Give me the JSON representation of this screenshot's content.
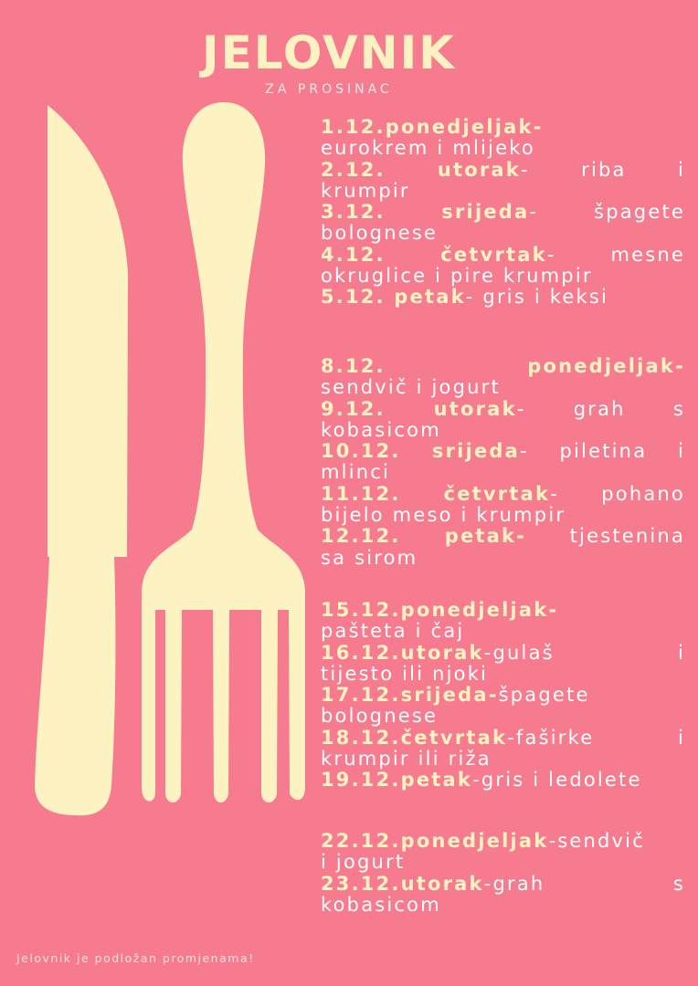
{
  "title": "JELOVNIK",
  "subtitle": "ZA PROSINAC",
  "colors": {
    "background": "#f77b8e",
    "accent": "#fcf2c2",
    "text": "#ffffff"
  },
  "weeks": [
    {
      "entries": [
        {
          "day": "1.12.ponedjeljak-",
          "rest": "",
          "line2": "eurokrem i mlijeko"
        },
        {
          "day": "2.12. utorak",
          "rest": "- riba i",
          "line2": "krumpir"
        },
        {
          "day": "3.12. srijeda",
          "rest": "- špagete",
          "line2": "bolognese"
        },
        {
          "day": "4.12. četvrtak",
          "rest": "- mesne",
          "line2": "okruglice i pire krumpir"
        },
        {
          "day": "5.12. petak",
          "rest": "- gris i keksi",
          "line2": ""
        }
      ]
    },
    {
      "entries": [
        {
          "day": "8.12. ponedjeljak-",
          "rest": "",
          "line2": "sendvič i jogurt"
        },
        {
          "day": "9.12. utorak",
          "rest": "- grah s",
          "line2": "kobasicom"
        },
        {
          "day": "10.12. srijeda",
          "rest": "- piletina i",
          "line2": "mlinci"
        },
        {
          "day": "11.12. četvrtak",
          "rest": "- pohano",
          "line2": "bijelo meso i krumpir"
        },
        {
          "day": "12.12. petak-",
          "rest": " tjestenina",
          "line2": "sa sirom"
        }
      ]
    },
    {
      "entries": [
        {
          "day": "15.12.ponedjeljak-",
          "rest": "",
          "line2": "pašteta i čaj"
        },
        {
          "day": "16.12.utorak",
          "rest": "-gulaš i",
          "line2": "tijesto ili njoki"
        },
        {
          "day": "17.12.srijeda-",
          "rest": "špagete",
          "line2": "bolognese"
        },
        {
          "day": "18.12.četvrtak",
          "rest": "-faširke i",
          "line2": "krumpir ili riža"
        },
        {
          "day": "19.12.petak",
          "rest": "-gris i ledolete",
          "line2": ""
        }
      ]
    },
    {
      "entries": [
        {
          "day": "22.12.ponedjeljak",
          "rest": "-sendvič",
          "line2": "i jogurt"
        },
        {
          "day": "23.12.utorak",
          "rest": "-grah s",
          "line2": "kobasicom"
        }
      ]
    }
  ],
  "footer": "Jelovnik je podložan promjenama!"
}
